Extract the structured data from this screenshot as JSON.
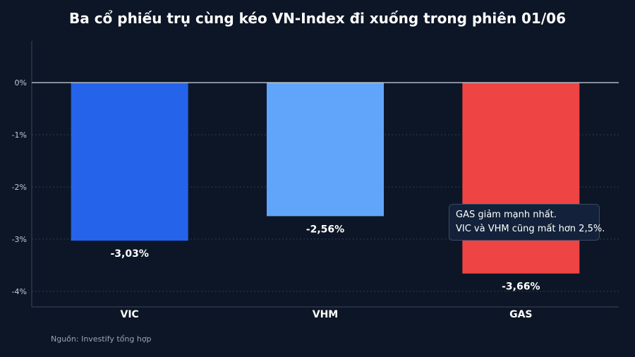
{
  "chart_data": {
    "type": "bar",
    "title": "Ba cổ phiếu trụ cùng kéo VN-Index đi xuống trong phiên 01/06",
    "categories": [
      "VIC",
      "VHM",
      "GAS"
    ],
    "values": [
      -3.03,
      -2.56,
      -3.66
    ],
    "value_labels": [
      "-3,03%",
      "-2,56%",
      "-3,66%"
    ],
    "bar_colors": [
      "#2563eb",
      "#60a5fa",
      "#ef4444"
    ],
    "yticks": [
      0,
      -1,
      -2,
      -3,
      -4
    ],
    "ytick_labels": [
      "0%",
      "-1%",
      "-2%",
      "-3%",
      "-4%"
    ],
    "ylim": [
      -4.3,
      0.8
    ],
    "grid": true,
    "xlabel": "",
    "ylabel": ""
  },
  "annotation": {
    "line1": "GAS giảm mạnh nhất.",
    "line2": "VIC và VHM cũng mất hơn 2,5%."
  },
  "source": "Nguồn: Investify tổng hợp"
}
